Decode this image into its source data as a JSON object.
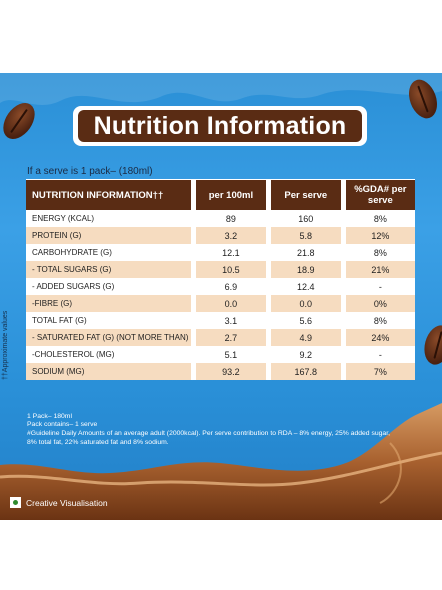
{
  "title": "Nutrition Information",
  "serve_note": "If a serve is 1 pack– (180ml)",
  "side_note": "††Approximate values",
  "table": {
    "headers": [
      "NUTRITION INFORMATION††",
      "per 100ml",
      "Per serve",
      "%GDA# per serve"
    ],
    "rows": [
      [
        "ENERGY (KCAL)",
        "89",
        "160",
        "8%"
      ],
      [
        "PROTEIN (G)",
        "3.2",
        "5.8",
        "12%"
      ],
      [
        "CARBOHYDRATE (G)",
        "12.1",
        "21.8",
        "8%"
      ],
      [
        "- TOTAL SUGARS (G)",
        "10.5",
        "18.9",
        "21%"
      ],
      [
        "- ADDED SUGARS (G)",
        "6.9",
        "12.4",
        "-"
      ],
      [
        "-FIBRE (G)",
        "0.0",
        "0.0",
        "0%"
      ],
      [
        "TOTAL FAT (G)",
        "3.1",
        "5.6",
        "8%"
      ],
      [
        "- SATURATED FAT (G) (NOT MORE THAN)",
        "2.7",
        "4.9",
        "24%"
      ],
      [
        "-CHOLESTEROL (MG)",
        "5.1",
        "9.2",
        "-"
      ],
      [
        "SODIUM (MG)",
        "93.2",
        "167.8",
        "7%"
      ]
    ]
  },
  "footnotes": [
    "1 Pack– 180ml",
    "Pack contains– 1 serve",
    "#Guideline Daily Amounts of an average adult (2000kcal). Per serve contribution to RDA – 8% energy, 25% added sugar,",
    "8% total fat, 22% saturated fat and 8% sodium."
  ],
  "creative_note": "Creative Visualisation",
  "colors": {
    "panel_blue": "#2a8fd6",
    "brown": "#5a2c14",
    "cream": "#f6dcc0",
    "veg_green": "#2d8a2d"
  }
}
